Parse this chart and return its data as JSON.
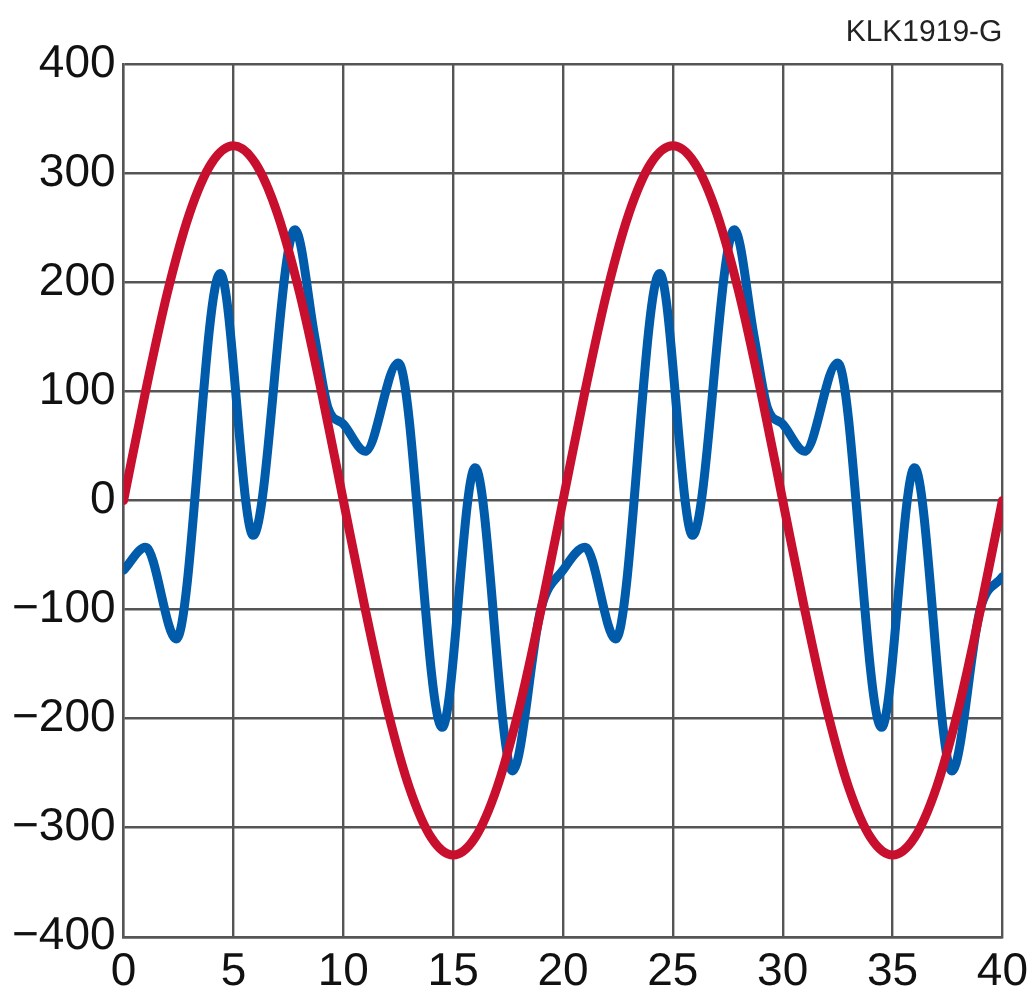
{
  "chart_data": {
    "type": "line",
    "annotations": [
      "KLK1919-G"
    ],
    "xlim": [
      0,
      40
    ],
    "xticks": [
      0,
      5,
      10,
      15,
      20,
      25,
      30,
      35,
      40
    ],
    "ylim": [
      -400,
      400
    ],
    "yticks": [
      -400,
      -300,
      -200,
      -100,
      0,
      100,
      200,
      300,
      400
    ],
    "grid": true,
    "legend": false,
    "marker": "none",
    "line_style": "solid",
    "series": [
      {
        "color": "#c8102e",
        "x": [
          0,
          1,
          2,
          3,
          4,
          5,
          6,
          7,
          8,
          9,
          10,
          11,
          12,
          13,
          14,
          15,
          16,
          17,
          18,
          19,
          20,
          21,
          22,
          23,
          24,
          25,
          26,
          27,
          28,
          29,
          30,
          31,
          32,
          33,
          34,
          35,
          36,
          37,
          38,
          39,
          40
        ],
        "values": [
          0,
          100,
          191,
          263,
          309,
          325,
          309,
          263,
          191,
          100,
          0,
          -100,
          -191,
          -263,
          -309,
          -325,
          -309,
          -263,
          -191,
          -100,
          0,
          100,
          191,
          263,
          309,
          325,
          309,
          263,
          191,
          100,
          0,
          -100,
          -191,
          -263,
          -309,
          -325,
          -309,
          -263,
          -191,
          -100,
          0
        ]
      },
      {
        "color": "#005bab",
        "x": [
          0,
          1,
          2.4,
          4.4,
          5.9,
          7.8,
          8.7,
          9.3,
          10,
          11,
          12.5,
          14.5,
          16,
          17.7,
          19,
          20,
          21,
          22.4,
          24.4,
          25.9,
          27.8,
          28.7,
          29.3,
          30,
          31,
          32.5,
          34.5,
          36,
          37.7,
          39,
          40
        ],
        "values": [
          -64,
          -43,
          -127,
          208,
          -32,
          248,
          150,
          85,
          70,
          45,
          126,
          -208,
          30,
          -248,
          -99,
          -64,
          -43,
          -127,
          208,
          -32,
          248,
          150,
          85,
          70,
          45,
          126,
          -208,
          30,
          -248,
          -99,
          -70
        ]
      }
    ]
  }
}
